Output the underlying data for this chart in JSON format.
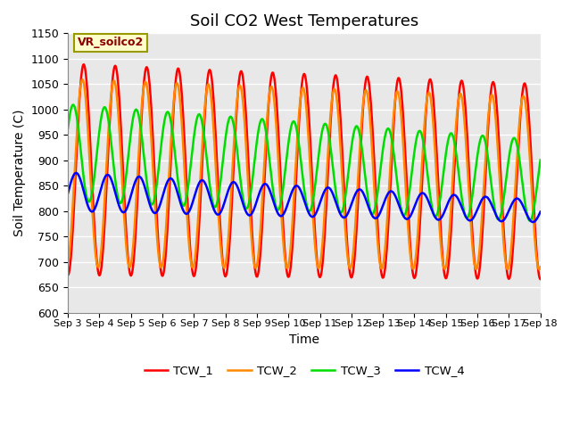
{
  "title": "Soil CO2 West Temperatures",
  "xlabel": "Time",
  "ylabel": "Soil Temperature (C)",
  "ylim": [
    600,
    1150
  ],
  "annotation": "VR_soilco2",
  "legend_labels": [
    "TCW_1",
    "TCW_2",
    "TCW_3",
    "TCW_4"
  ],
  "colors": [
    "#FF0000",
    "#FF8800",
    "#00DD00",
    "#0000FF"
  ],
  "linewidth": 1.8,
  "x_tick_labels": [
    "Sep 3",
    "Sep 4",
    "Sep 5",
    "Sep 6",
    "Sep 7",
    "Sep 8",
    "Sep 9",
    "Sep 10",
    "Sep 11",
    "Sep 12",
    "Sep 13",
    "Sep 14",
    "Sep 15",
    "Sep 16",
    "Sep 17",
    "Sep 18"
  ],
  "background_color": "#E8E8E8",
  "grid_color": "#FFFFFF",
  "n_days": 15,
  "points_per_day": 120
}
